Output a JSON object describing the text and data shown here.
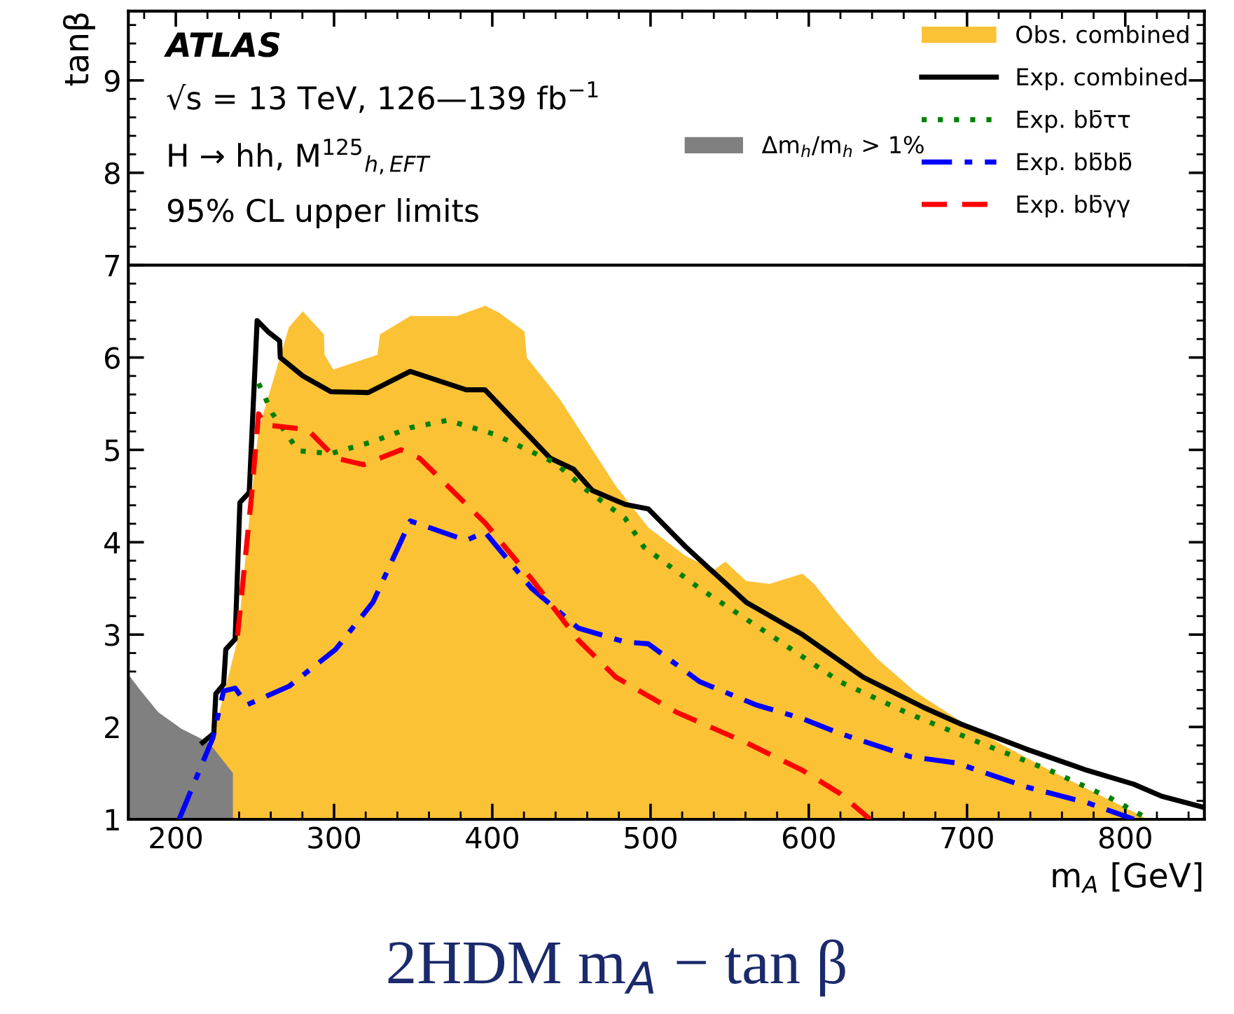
{
  "chart_data": {
    "type": "line",
    "title": "2HDM m$_{A}$ − tan β",
    "xlabel": "m$_{A}$ [GeV]",
    "ylabel": "tanβ",
    "xlim": [
      170,
      850
    ],
    "ylim": [
      1,
      9.75
    ],
    "xticks": [
      200,
      300,
      400,
      500,
      600,
      700,
      800
    ],
    "yticks": [
      1,
      2,
      3,
      4,
      5,
      6,
      7,
      8,
      9
    ],
    "grid": false,
    "legend": "top right",
    "annotations": [
      "ATLAS",
      "√s = 13 TeV, 126—139 fb$^{−1}$",
      "H → hh, M$^{125}$$_{h,EFT}$",
      "95% CL upper limits"
    ],
    "ref_lines": [
      {
        "axis": "y",
        "value": 7,
        "label": null,
        "color": "#000000"
      }
    ],
    "series": [
      {
        "name": "Obs. combined",
        "type": "area",
        "color": "#fcc236",
        "x": [
          223.4,
          239,
          247.9,
          252.3,
          271.5,
          280.3,
          293.6,
          294,
          299.5,
          327.5,
          329,
          348.2,
          377.7,
          395.4,
          404,
          420.4,
          421.8,
          442.6,
          458.8,
          478,
          498.6,
          522.2,
          539.9,
          547.3,
          560.5,
          575.3,
          596,
          603.3,
          619.6,
          643.2,
          666.7,
          693.3,
          719.8,
          752.3,
          781.8,
          805.4,
          814
        ],
        "values": [
          1.88,
          2.94,
          4.51,
          5.22,
          6.33,
          6.5,
          6.25,
          6.03,
          5.87,
          6.03,
          6.25,
          6.45,
          6.45,
          6.56,
          6.49,
          6.28,
          6.0,
          5.55,
          5.12,
          4.61,
          4.16,
          3.85,
          3.7,
          3.79,
          3.58,
          3.55,
          3.66,
          3.55,
          3.2,
          2.74,
          2.39,
          2.09,
          1.83,
          1.53,
          1.28,
          1.08,
          1.0
        ]
      },
      {
        "name": "Exp. combined",
        "color": "#000000",
        "line_style": "solid",
        "x": [
          216.9,
          224,
          225.3,
          230.2,
          231.6,
          237.5,
          240.5,
          246.4,
          251.4,
          258.2,
          265.6,
          266,
          280.3,
          298,
          321.6,
          348.2,
          383.5,
          395.4,
          436.6,
          451.4,
          463.2,
          483.9,
          498.6,
          522.2,
          560.5,
          596,
          634.3,
          672.7,
          696.3,
          737.5,
          775.9,
          805.4,
          823,
          849.6
        ],
        "values": [
          1.83,
          1.93,
          2.36,
          2.46,
          2.84,
          2.95,
          4.43,
          4.54,
          6.4,
          6.28,
          6.18,
          6.0,
          5.8,
          5.63,
          5.62,
          5.85,
          5.65,
          5.65,
          4.91,
          4.79,
          4.56,
          4.41,
          4.36,
          3.95,
          3.35,
          3.0,
          2.54,
          2.21,
          2.03,
          1.76,
          1.53,
          1.38,
          1.25,
          1.13
        ]
      },
      {
        "name": "Exp. bb̄ττ",
        "color": "#008000",
        "line_style": "dotted",
        "x": [
          252.3,
          261.2,
          277.4,
          298,
          324.6,
          348.2,
          371.8,
          401.3,
          439.6,
          460,
          483.9,
          495.7,
          531,
          575.3,
          619.6,
          663.8,
          708,
          752.3,
          790.6,
          812.8
        ],
        "values": [
          5.72,
          5.39,
          4.99,
          4.96,
          5.09,
          5.24,
          5.32,
          5.17,
          4.86,
          4.56,
          4.26,
          3.95,
          3.5,
          3.0,
          2.49,
          2.14,
          1.83,
          1.53,
          1.23,
          1.02
        ]
      },
      {
        "name": "Exp. bb̄bb̄",
        "color": "#0000ff",
        "line_style": "dashdot",
        "x": [
          202.1,
          223.4,
          230.2,
          237.5,
          245,
          271.5,
          301,
          324.6,
          348.2,
          383.5,
          395.4,
          424.9,
          454.4,
          483.9,
          498.6,
          531,
          566.5,
          596,
          619.6,
          663.8,
          693.3,
          737.5,
          775.9,
          805.4
        ],
        "values": [
          1.0,
          1.88,
          2.39,
          2.42,
          2.24,
          2.44,
          2.84,
          3.35,
          4.23,
          4.02,
          4.11,
          3.5,
          3.07,
          2.92,
          2.9,
          2.49,
          2.24,
          2.09,
          1.93,
          1.68,
          1.61,
          1.35,
          1.18,
          1.0
        ]
      },
      {
        "name": "Exp. bb̄γγ",
        "color": "#ff0000",
        "line_style": "dashed",
        "x": [
          239,
          247.9,
          252.3,
          256.7,
          283.3,
          301,
          318.7,
          342.3,
          354,
          395.4,
          424.9,
          454.4,
          478,
          516.3,
          560.5,
          596,
          619.6,
          638.8
        ],
        "values": [
          2.99,
          4.51,
          5.39,
          5.27,
          5.22,
          4.91,
          4.84,
          5.0,
          4.91,
          4.21,
          3.6,
          2.94,
          2.54,
          2.16,
          1.83,
          1.53,
          1.28,
          1.0
        ]
      },
      {
        "name": "Δm$_{h}$/m$_{h}$ > 1%",
        "type": "area",
        "color": "#808080",
        "x": [
          170,
          177,
          188.9,
          203.6,
          221,
          236.1
        ],
        "values": [
          2.57,
          2.41,
          2.16,
          1.98,
          1.83,
          1.5
        ]
      }
    ]
  }
}
